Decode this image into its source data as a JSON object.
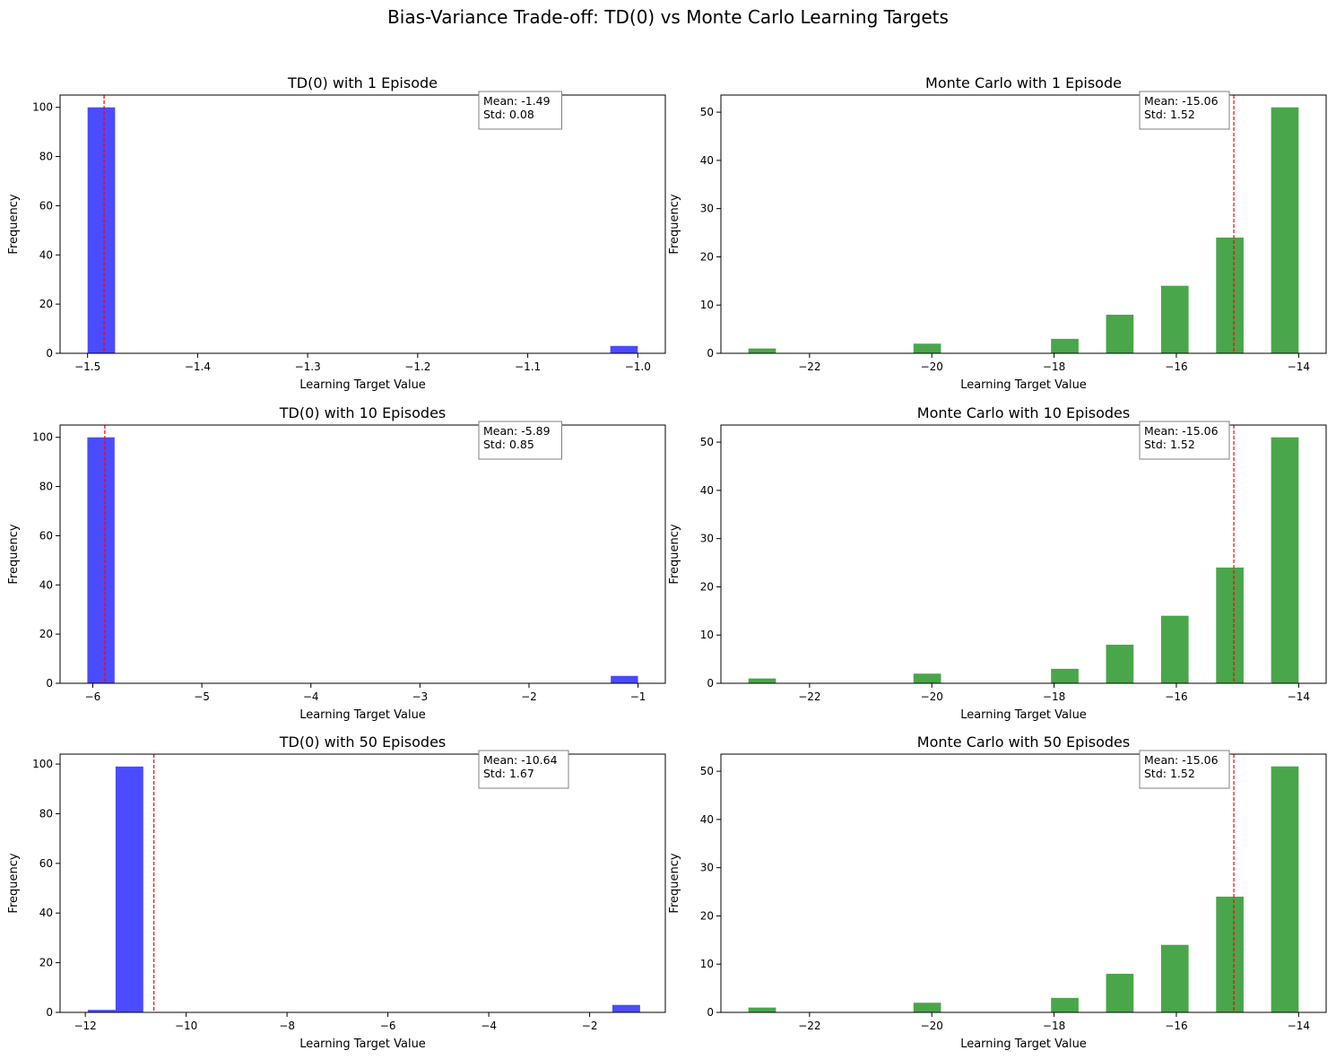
{
  "figure": {
    "title": "Bias-Variance Trade-off: TD(0) vs Monte Carlo Learning Targets"
  },
  "chart_data": [
    {
      "type": "bar",
      "title": "TD(0) with 1 Episode",
      "xlabel": "Learning Target Value",
      "ylabel": "Frequency",
      "xlim": [
        -1.525,
        -0.975
      ],
      "ylim": [
        0,
        105
      ],
      "xticks": [
        -1.5,
        -1.4,
        -1.3,
        -1.2,
        -1.1,
        -1.0
      ],
      "xtick_labels": [
        "−1.5",
        "−1.4",
        "−1.3",
        "−1.2",
        "−1.1",
        "−1.0"
      ],
      "yticks": [
        0,
        20,
        40,
        60,
        80,
        100
      ],
      "color": "#4b4bff",
      "bins": [
        {
          "x0": -1.5,
          "x1": -1.475,
          "value": 100
        },
        {
          "x0": -1.025,
          "x1": -1.0,
          "value": 3
        }
      ],
      "mean_line": -1.485,
      "mean_line_color": "#ff0000",
      "annotation": [
        "Mean: -1.49",
        "Std: 0.08"
      ],
      "grid": false
    },
    {
      "type": "bar",
      "title": "Monte Carlo with 1 Episode",
      "xlabel": "Learning Target Value",
      "ylabel": "Frequency",
      "xlim": [
        -23.45,
        -13.55
      ],
      "ylim": [
        0,
        53.55
      ],
      "xticks": [
        -22,
        -20,
        -18,
        -16,
        -14
      ],
      "xtick_labels": [
        "−22",
        "−20",
        "−18",
        "−16",
        "−14"
      ],
      "yticks": [
        0,
        10,
        20,
        30,
        40,
        50
      ],
      "color": "#4aa64a",
      "bins": [
        {
          "x0": -23.0,
          "x1": -22.55,
          "value": 1
        },
        {
          "x0": -20.3,
          "x1": -19.85,
          "value": 2
        },
        {
          "x0": -18.05,
          "x1": -17.6,
          "value": 3
        },
        {
          "x0": -17.15,
          "x1": -16.7,
          "value": 8
        },
        {
          "x0": -16.25,
          "x1": -15.8,
          "value": 14
        },
        {
          "x0": -15.35,
          "x1": -14.9,
          "value": 24
        },
        {
          "x0": -14.45,
          "x1": -14.0,
          "value": 51
        }
      ],
      "mean_line": -15.06,
      "mean_line_color": "#ff0000",
      "annotation": [
        "Mean: -15.06",
        "Std: 1.52"
      ],
      "grid": false
    },
    {
      "type": "bar",
      "title": "TD(0) with 10 Episodes",
      "xlabel": "Learning Target Value",
      "ylabel": "Frequency",
      "xlim": [
        -6.3,
        -0.75
      ],
      "ylim": [
        0,
        105
      ],
      "xticks": [
        -6,
        -5,
        -4,
        -3,
        -2,
        -1
      ],
      "xtick_labels": [
        "−6",
        "−5",
        "−4",
        "−3",
        "−2",
        "−1"
      ],
      "yticks": [
        0,
        20,
        40,
        60,
        80,
        100
      ],
      "color": "#4b4bff",
      "bins": [
        {
          "x0": -6.05,
          "x1": -5.8,
          "value": 100
        },
        {
          "x0": -1.25,
          "x1": -1.0,
          "value": 3
        }
      ],
      "mean_line": -5.89,
      "mean_line_color": "#ff0000",
      "annotation": [
        "Mean: -5.89",
        "Std: 0.85"
      ],
      "grid": false
    },
    {
      "type": "bar",
      "title": "Monte Carlo with 10 Episodes",
      "xlabel": "Learning Target Value",
      "ylabel": "Frequency",
      "xlim": [
        -23.45,
        -13.55
      ],
      "ylim": [
        0,
        53.55
      ],
      "xticks": [
        -22,
        -20,
        -18,
        -16,
        -14
      ],
      "xtick_labels": [
        "−22",
        "−20",
        "−18",
        "−16",
        "−14"
      ],
      "yticks": [
        0,
        10,
        20,
        30,
        40,
        50
      ],
      "color": "#4aa64a",
      "bins": [
        {
          "x0": -23.0,
          "x1": -22.55,
          "value": 1
        },
        {
          "x0": -20.3,
          "x1": -19.85,
          "value": 2
        },
        {
          "x0": -18.05,
          "x1": -17.6,
          "value": 3
        },
        {
          "x0": -17.15,
          "x1": -16.7,
          "value": 8
        },
        {
          "x0": -16.25,
          "x1": -15.8,
          "value": 14
        },
        {
          "x0": -15.35,
          "x1": -14.9,
          "value": 24
        },
        {
          "x0": -14.45,
          "x1": -14.0,
          "value": 51
        }
      ],
      "mean_line": -15.06,
      "mean_line_color": "#ff0000",
      "annotation": [
        "Mean: -15.06",
        "Std: 1.52"
      ],
      "grid": false
    },
    {
      "type": "bar",
      "title": "TD(0) with 50 Episodes",
      "xlabel": "Learning Target Value",
      "ylabel": "Frequency",
      "xlim": [
        -12.5,
        -0.5
      ],
      "ylim": [
        0,
        104
      ],
      "xticks": [
        -12,
        -10,
        -8,
        -6,
        -4,
        -2
      ],
      "xtick_labels": [
        "−12",
        "−10",
        "−8",
        "−6",
        "−4",
        "−2"
      ],
      "yticks": [
        0,
        20,
        40,
        60,
        80,
        100
      ],
      "color": "#4b4bff",
      "bins": [
        {
          "x0": -11.95,
          "x1": -11.4,
          "value": 1
        },
        {
          "x0": -11.4,
          "x1": -10.85,
          "value": 99
        },
        {
          "x0": -1.55,
          "x1": -1.0,
          "value": 3
        }
      ],
      "mean_line": -10.64,
      "mean_line_color": "#ff0000",
      "annotation": [
        "Mean: -10.64",
        "Std: 1.67"
      ],
      "grid": false
    },
    {
      "type": "bar",
      "title": "Monte Carlo with 50 Episodes",
      "xlabel": "Learning Target Value",
      "ylabel": "Frequency",
      "xlim": [
        -23.45,
        -13.55
      ],
      "ylim": [
        0,
        53.55
      ],
      "xticks": [
        -22,
        -20,
        -18,
        -16,
        -14
      ],
      "xtick_labels": [
        "−22",
        "−20",
        "−18",
        "−16",
        "−14"
      ],
      "yticks": [
        0,
        10,
        20,
        30,
        40,
        50
      ],
      "color": "#4aa64a",
      "bins": [
        {
          "x0": -23.0,
          "x1": -22.55,
          "value": 1
        },
        {
          "x0": -20.3,
          "x1": -19.85,
          "value": 2
        },
        {
          "x0": -18.05,
          "x1": -17.6,
          "value": 3
        },
        {
          "x0": -17.15,
          "x1": -16.7,
          "value": 8
        },
        {
          "x0": -16.25,
          "x1": -15.8,
          "value": 14
        },
        {
          "x0": -15.35,
          "x1": -14.9,
          "value": 24
        },
        {
          "x0": -14.45,
          "x1": -14.0,
          "value": 51
        }
      ],
      "mean_line": -15.06,
      "mean_line_color": "#ff0000",
      "annotation": [
        "Mean: -15.06",
        "Std: 1.52"
      ],
      "grid": false
    }
  ]
}
